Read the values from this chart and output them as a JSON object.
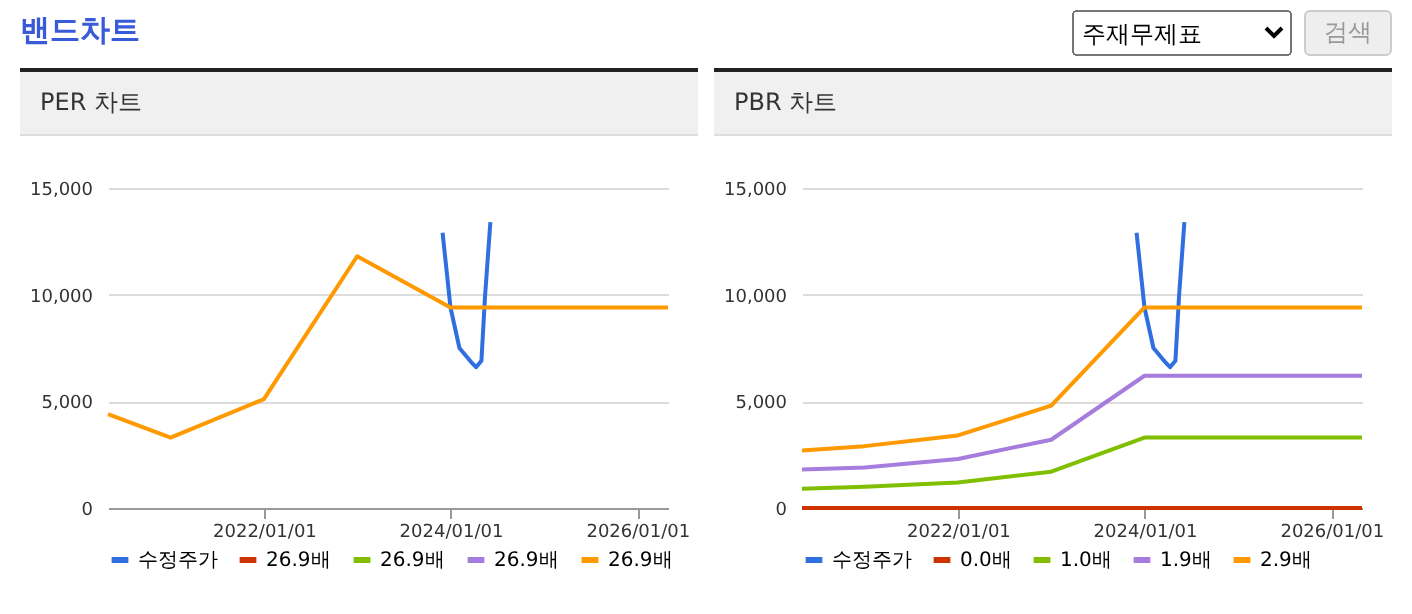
{
  "chart_data": [
    {
      "type": "line",
      "title": "PER 차트",
      "annotations": [
        "밴드차트",
        "주재무제표",
        "검색"
      ],
      "x": [
        "2020-05",
        "2021-01",
        "2022-01",
        "2023-01",
        "2024-01",
        "2026-05"
      ],
      "xlim": [
        "2020-05",
        "2026-05"
      ],
      "xticks": [
        {
          "value": "2022-01-01",
          "label": "2022/01/01"
        },
        {
          "value": "2024-01-01",
          "label": "2024/01/01"
        },
        {
          "value": "2026-01-01",
          "label": "2026/01/01"
        }
      ],
      "ylim": [
        0,
        15000
      ],
      "yticks": [
        0,
        {
          "value": 5000,
          "label": "5,000"
        },
        {
          "value": 10000,
          "label": "10,000"
        },
        {
          "value": 15000,
          "label": "15,000"
        }
      ],
      "grid": "y",
      "legend": "bottom",
      "series": [
        {
          "name": "수정주가",
          "color": "#2f6fe0",
          "x": [
            "2023-12-01",
            "2024-01-01",
            "2024-02-05",
            "2024-03-25",
            "2024-04-10",
            "2024-05-01",
            "2024-05-15",
            "2024-06-05"
          ],
          "values": [
            12900,
            9400,
            7500,
            6800,
            6600,
            6900,
            9900,
            13400
          ]
        },
        {
          "name": "26.9배",
          "color": "#cc3300",
          "values": [
            null,
            null,
            null,
            null,
            null,
            null
          ]
        },
        {
          "name": "26.9배",
          "color": "#80bf00",
          "values": [
            null,
            null,
            null,
            null,
            null,
            null
          ]
        },
        {
          "name": "26.9배",
          "color": "#a67cdd",
          "values": [
            null,
            null,
            null,
            null,
            null,
            null
          ]
        },
        {
          "name": "26.9배",
          "color": "#ff9900",
          "values": [
            4400,
            3300,
            5100,
            11800,
            9400,
            9400
          ]
        }
      ]
    },
    {
      "type": "line",
      "title": "PBR 차트",
      "x": [
        "2020-05",
        "2021-01",
        "2022-01",
        "2023-01",
        "2024-01",
        "2026-05"
      ],
      "xlim": [
        "2020-05",
        "2026-05"
      ],
      "xticks": [
        {
          "value": "2022-01-01",
          "label": "2022/01/01"
        },
        {
          "value": "2024-01-01",
          "label": "2024/01/01"
        },
        {
          "value": "2026-01-01",
          "label": "2026/01/01"
        }
      ],
      "ylim": [
        0,
        15000
      ],
      "yticks": [
        0,
        {
          "value": 5000,
          "label": "5,000"
        },
        {
          "value": 10000,
          "label": "10,000"
        },
        {
          "value": 15000,
          "label": "15,000"
        }
      ],
      "grid": "y",
      "legend": "bottom",
      "series": [
        {
          "name": "수정주가",
          "color": "#2f6fe0",
          "x": [
            "2023-12-01",
            "2024-01-01",
            "2024-02-05",
            "2024-03-25",
            "2024-04-10",
            "2024-05-01",
            "2024-05-15",
            "2024-06-05"
          ],
          "values": [
            12900,
            9400,
            7500,
            6800,
            6600,
            6900,
            9900,
            13400
          ]
        },
        {
          "name": "0.0배",
          "color": "#cc3300",
          "values": [
            0,
            0,
            0,
            0,
            0,
            0
          ]
        },
        {
          "name": "1.0배",
          "color": "#80bf00",
          "values": [
            900,
            1000,
            1200,
            1700,
            3300,
            3300
          ]
        },
        {
          "name": "1.9배",
          "color": "#a67cdd",
          "values": [
            1800,
            1900,
            2300,
            3200,
            6200,
            6200
          ]
        },
        {
          "name": "2.9배",
          "color": "#ff9900",
          "values": [
            2700,
            2900,
            3400,
            4800,
            9400,
            9400
          ]
        }
      ]
    }
  ]
}
